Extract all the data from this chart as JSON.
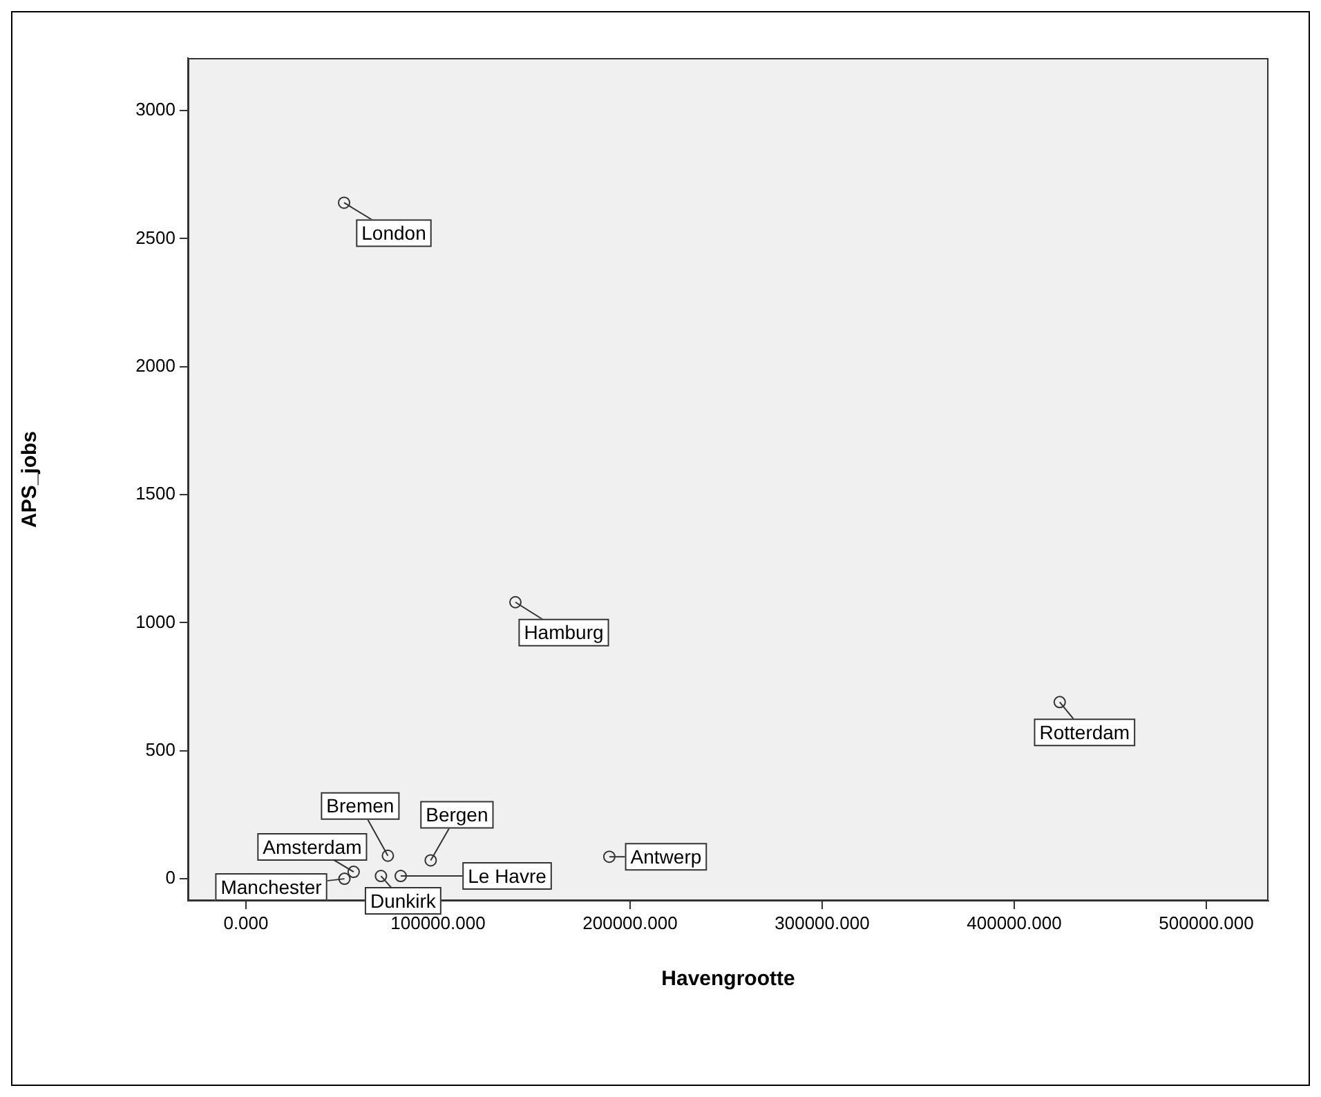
{
  "chart_data": {
    "type": "scatter",
    "xlabel": "Havengrootte",
    "ylabel": "APS_jobs",
    "series": [
      {
        "color": "#333333",
        "x": [
          51100,
          140300,
          423700,
          189200,
          73900,
          96200,
          80600,
          70300,
          56100,
          51300
        ],
        "values": [
          2640,
          1080,
          690,
          86,
          90,
          72,
          11,
          11,
          27,
          0
        ]
      }
    ],
    "annotations": [
      {
        "text": "London",
        "x": 51100,
        "y": 2640
      },
      {
        "text": "Hamburg",
        "x": 140300,
        "y": 1080
      },
      {
        "text": "Rotterdam",
        "x": 423700,
        "y": 690
      },
      {
        "text": "Antwerp",
        "x": 189200,
        "y": 86
      },
      {
        "text": "Bremen",
        "x": 73900,
        "y": 90
      },
      {
        "text": "Bergen",
        "x": 96200,
        "y": 72
      },
      {
        "text": "Le Havre",
        "x": 80600,
        "y": 11
      },
      {
        "text": "Dunkirk",
        "x": 70300,
        "y": 11
      },
      {
        "text": "Amsterdam",
        "x": 56100,
        "y": 27
      },
      {
        "text": "Manchester",
        "x": 51300,
        "y": 0
      }
    ],
    "xlim": [
      -30200,
      532400
    ],
    "ylim": [
      -86,
      3205
    ],
    "xticks": [
      {
        "value": 0,
        "label": "0.000"
      },
      {
        "value": 100000,
        "label": "100000.000"
      },
      {
        "value": 200000,
        "label": "200000.000"
      },
      {
        "value": 300000,
        "label": "300000.000"
      },
      {
        "value": 400000,
        "label": "400000.000"
      },
      {
        "value": 500000,
        "label": "500000.000"
      }
    ],
    "yticks": [
      0,
      500,
      1000,
      1500,
      2000,
      2500,
      3000
    ],
    "grid": false,
    "legend": false,
    "marker": "circle"
  }
}
